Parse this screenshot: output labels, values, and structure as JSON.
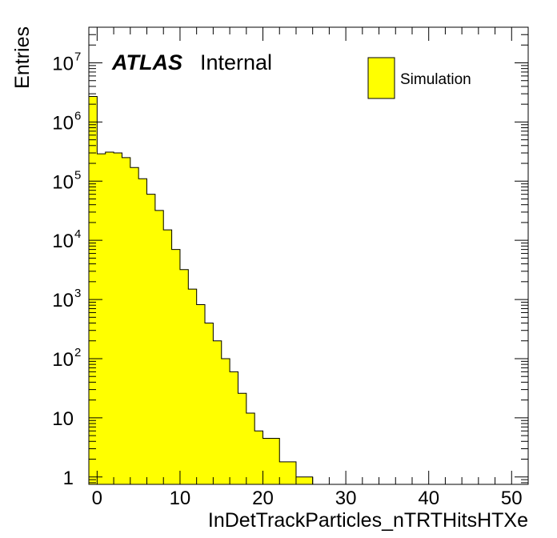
{
  "chart_data": {
    "type": "bar",
    "style": "filled-step-histogram",
    "log_y": true,
    "xlabel": "InDetTrackParticles_nTRTHitsHTXe",
    "ylabel": "Entries",
    "xlim": [
      -1,
      52
    ],
    "ylim": [
      0.75,
      40000000
    ],
    "bin_width": 1,
    "fill_color": "#ffff00",
    "line_color": "#000000",
    "x_ticks": [
      0,
      10,
      20,
      30,
      40,
      50
    ],
    "x_tick_labels": [
      "0",
      "10",
      "20",
      "30",
      "40",
      "50"
    ],
    "y_ticks": [
      {
        "value": 1,
        "base": "1",
        "exp": ""
      },
      {
        "value": 10,
        "base": "10",
        "exp": ""
      },
      {
        "value": 100,
        "base": "10",
        "exp": "2"
      },
      {
        "value": 1000,
        "base": "10",
        "exp": "3"
      },
      {
        "value": 10000,
        "base": "10",
        "exp": "4"
      },
      {
        "value": 100000,
        "base": "10",
        "exp": "5"
      },
      {
        "value": 1000000,
        "base": "10",
        "exp": "6"
      },
      {
        "value": 10000000,
        "base": "10",
        "exp": "7"
      }
    ],
    "bin_low_edges": [
      -1,
      0,
      1,
      2,
      3,
      4,
      5,
      6,
      7,
      8,
      9,
      10,
      11,
      12,
      13,
      14,
      15,
      16,
      17,
      18,
      19,
      20,
      21,
      22,
      23,
      24,
      25
    ],
    "series": [
      {
        "name": "Simulation",
        "values": [
          2700000,
          290000,
          310000,
          300000,
          250000,
          170000,
          110000,
          60000,
          32000,
          15000,
          7000,
          3200,
          1500,
          820,
          400,
          200,
          100,
          60,
          26,
          12,
          6,
          4.5,
          4.5,
          1.8,
          1.8,
          1,
          1
        ]
      }
    ],
    "legend": {
      "position": "top-right",
      "entries": [
        "Simulation"
      ]
    },
    "annotations": {
      "atlas": "ATLAS",
      "status": "Internal"
    }
  }
}
